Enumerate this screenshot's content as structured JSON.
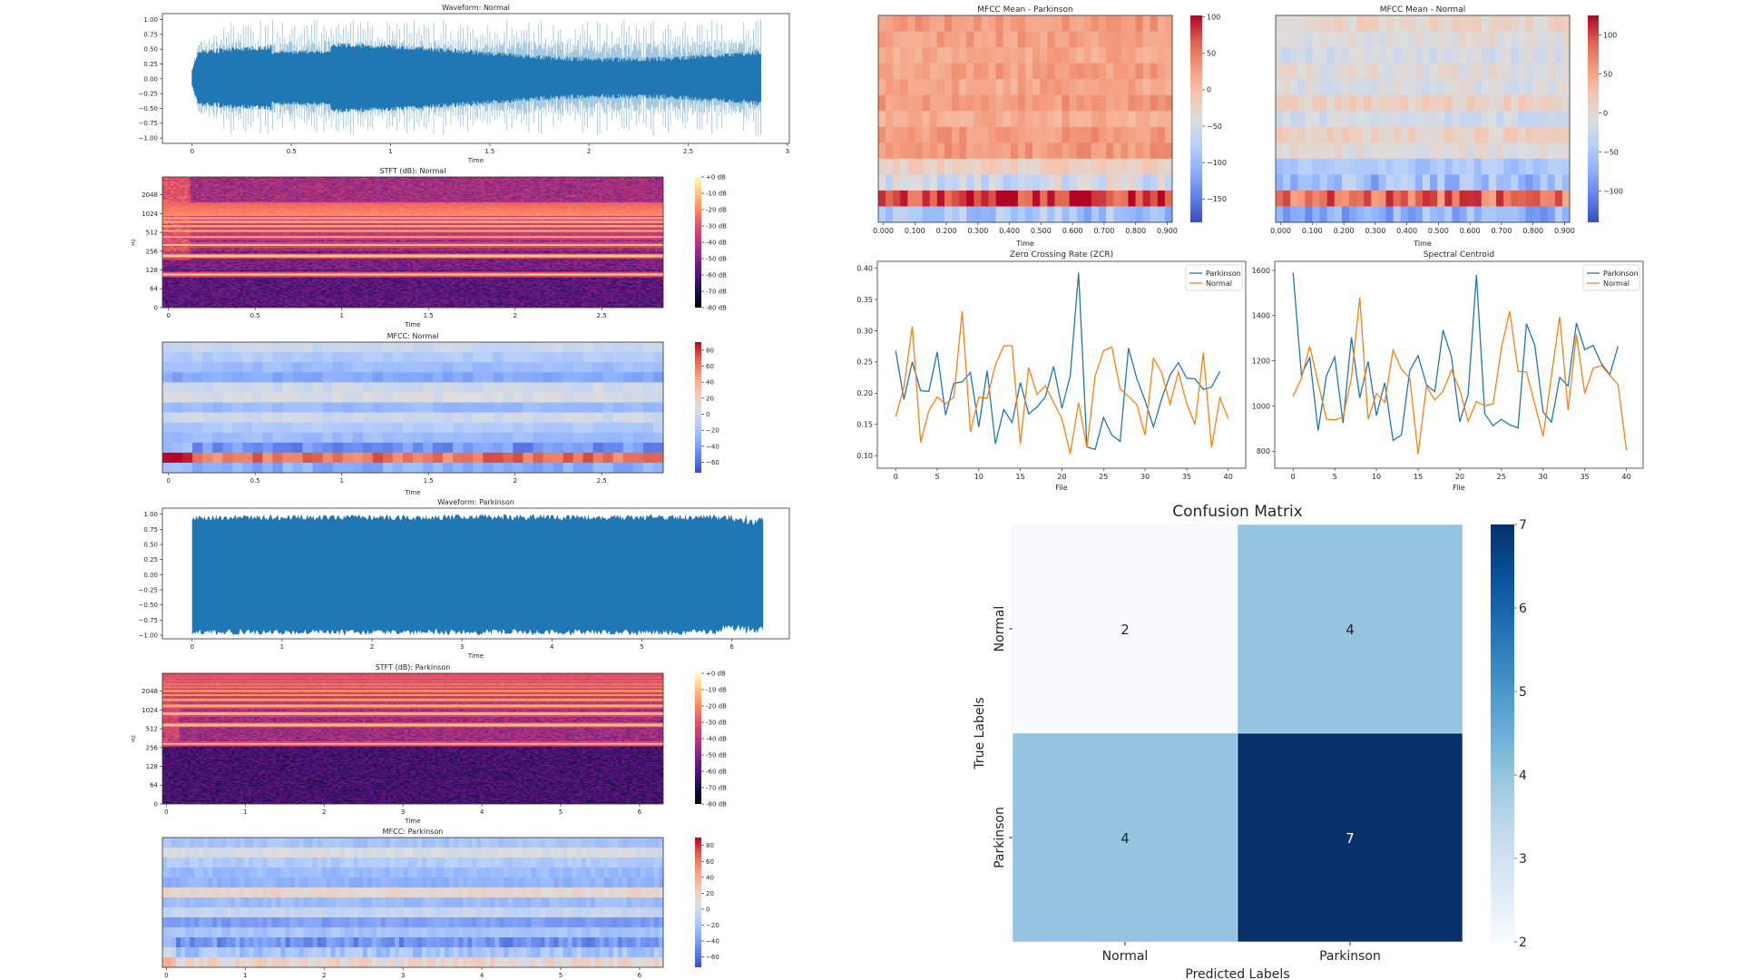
{
  "chart_data": [
    {
      "type": "line",
      "title": "Waveform: Normal",
      "xlabel": "Time",
      "x_ticks": [
        0,
        0.5,
        1,
        1.5,
        2,
        2.5,
        3
      ],
      "x_tick_labels": [
        "0",
        "0.5",
        "1",
        "1.5",
        "2",
        "2.5",
        "3"
      ],
      "y_ticks": [
        1,
        0.75,
        0.5,
        0.25,
        0,
        -0.25,
        -0.5,
        -0.75,
        -1
      ],
      "y_tick_labels": [
        "1.00",
        "0.75",
        "0.50",
        "0.25",
        "0.00",
        "−0.25",
        "−0.50",
        "−0.75",
        "−1.00"
      ],
      "xlim": [
        -0.15,
        3.01
      ],
      "ylim": [
        -1.09,
        1.1
      ],
      "duration_s": 2.87,
      "color": "#1f77b4"
    },
    {
      "type": "heatmap",
      "title": "STFT (dB): Normal",
      "xlabel": "Time",
      "ylabel": "Hz",
      "x_ticks": [
        0,
        0.5,
        1,
        1.5,
        2,
        2.5
      ],
      "x_tick_labels": [
        "0",
        "0.5",
        "1",
        "1.5",
        "2",
        "2.5"
      ],
      "y_ticks": [
        0,
        64,
        128,
        256,
        512,
        1024,
        2048
      ],
      "y_tick_labels": [
        "0",
        "64",
        "128",
        "256",
        "512",
        "1024",
        "2048"
      ],
      "xlim": [
        -0.035,
        2.855
      ],
      "fundamental_hz": 108,
      "colormap": "magma",
      "clim": [
        -80,
        0
      ],
      "colorbar_ticks": [
        0,
        -10,
        -20,
        -30,
        -40,
        -50,
        -60,
        -70,
        -80
      ],
      "colorbar_labels": [
        "+0 dB",
        "-10 dB",
        "-20 dB",
        "-30 dB",
        "-40 dB",
        "-50 dB",
        "-60 dB",
        "-70 dB",
        "-80 dB"
      ]
    },
    {
      "type": "heatmap",
      "title": "MFCC: Normal",
      "xlabel": "Time",
      "x_ticks": [
        0,
        0.5,
        1,
        1.5,
        2,
        2.5
      ],
      "x_tick_labels": [
        "0",
        "0.5",
        "1",
        "1.5",
        "2",
        "2.5"
      ],
      "xlim": [
        -0.035,
        2.855
      ],
      "colormap": "coolwarm",
      "clim": [
        -73,
        90
      ],
      "row_means": [
        -2,
        -15,
        -25,
        -35,
        0,
        5,
        -25,
        0,
        -15,
        -25,
        -45,
        62,
        -30
      ],
      "colorbar_ticks": [
        80,
        60,
        40,
        20,
        0,
        -20,
        -40,
        -60
      ],
      "colorbar_labels": [
        "80",
        "60",
        "40",
        "20",
        "0",
        "−20",
        "−40",
        "−60"
      ]
    },
    {
      "type": "line",
      "title": "Waveform: Parkinson",
      "xlabel": "Time",
      "x_ticks": [
        0,
        1,
        2,
        3,
        4,
        5,
        6
      ],
      "x_tick_labels": [
        "0",
        "1",
        "2",
        "3",
        "4",
        "5",
        "6"
      ],
      "y_ticks": [
        1,
        0.75,
        0.5,
        0.25,
        0,
        -0.25,
        -0.5,
        -0.75,
        -1
      ],
      "y_tick_labels": [
        "1.00",
        "0.75",
        "0.50",
        "0.25",
        "0.00",
        "−0.25",
        "−0.50",
        "−0.75",
        "−1.00"
      ],
      "xlim": [
        -0.33,
        6.64
      ],
      "ylim": [
        -1.06,
        1.1
      ],
      "duration_s": 6.35,
      "color": "#1f77b4"
    },
    {
      "type": "heatmap",
      "title": "STFT (dB): Parkinson",
      "xlabel": "Time",
      "ylabel": "Hz",
      "x_ticks": [
        0,
        1,
        2,
        3,
        4,
        5,
        6
      ],
      "x_tick_labels": [
        "0",
        "1",
        "2",
        "3",
        "4",
        "5",
        "6"
      ],
      "y_ticks": [
        0,
        64,
        128,
        256,
        512,
        1024,
        2048
      ],
      "y_tick_labels": [
        "0",
        "64",
        "128",
        "256",
        "512",
        "1024",
        "2048"
      ],
      "xlim": [
        -0.05,
        6.3
      ],
      "fundamental_hz": 295,
      "colormap": "magma",
      "clim": [
        -80,
        0
      ],
      "colorbar_ticks": [
        0,
        -10,
        -20,
        -30,
        -40,
        -50,
        -60,
        -70,
        -80
      ],
      "colorbar_labels": [
        "+0 dB",
        "-10 dB",
        "-20 dB",
        "-30 dB",
        "-40 dB",
        "-50 dB",
        "-60 dB",
        "-70 dB",
        "-80 dB"
      ]
    },
    {
      "type": "heatmap",
      "title": "MFCC: Parkinson",
      "xlabel": "Time",
      "x_ticks": [
        0,
        1,
        2,
        3,
        4,
        5,
        6
      ],
      "x_tick_labels": [
        "0",
        "1",
        "2",
        "3",
        "4",
        "5",
        "6"
      ],
      "xlim": [
        -0.05,
        6.3
      ],
      "colormap": "coolwarm",
      "clim": [
        -73,
        90
      ],
      "row_means": [
        -20,
        5,
        -15,
        -25,
        -30,
        15,
        -25,
        -5,
        -40,
        -20,
        -45,
        -20,
        15
      ],
      "colorbar_ticks": [
        80,
        60,
        40,
        20,
        0,
        -20,
        -40,
        -60
      ],
      "colorbar_labels": [
        "80",
        "60",
        "40",
        "20",
        "0",
        "−20",
        "−40",
        "−60"
      ]
    },
    {
      "type": "heatmap",
      "title": "MFCC Mean - Parkinson",
      "xlabel": "Time",
      "x_ticks": [
        0,
        0.1,
        0.2,
        0.3,
        0.4,
        0.5,
        0.6,
        0.7,
        0.8,
        0.9
      ],
      "x_tick_labels": [
        "0.000",
        "0.100",
        "0.200",
        "0.300",
        "0.400",
        "0.500",
        "0.600",
        "0.700",
        "0.800",
        "0.900"
      ],
      "xlim": [
        -0.016,
        0.916
      ],
      "colormap": "coolwarm",
      "clim": [
        -182,
        102
      ],
      "row_means": [
        30,
        25,
        20,
        25,
        20,
        30,
        15,
        30,
        30,
        -20,
        -50,
        80,
        -90
      ],
      "colorbar_ticks": [
        100,
        50,
        0,
        -50,
        -100,
        -150
      ],
      "colorbar_labels": [
        "100",
        "50",
        "0",
        "−50",
        "−100",
        "−150"
      ]
    },
    {
      "type": "heatmap",
      "title": "MFCC Mean - Normal",
      "xlabel": "Time",
      "x_ticks": [
        0,
        0.1,
        0.2,
        0.3,
        0.4,
        0.5,
        0.6,
        0.7,
        0.8,
        0.9
      ],
      "x_tick_labels": [
        "0.000",
        "0.100",
        "0.200",
        "0.300",
        "0.400",
        "0.500",
        "0.600",
        "0.700",
        "0.800",
        "0.900"
      ],
      "xlim": [
        -0.016,
        0.916
      ],
      "colormap": "coolwarm",
      "clim": [
        -140,
        125
      ],
      "row_means": [
        5,
        -5,
        -15,
        -5,
        -10,
        10,
        -20,
        10,
        -5,
        -50,
        -60,
        80,
        -70
      ],
      "colorbar_ticks": [
        100,
        50,
        0,
        -50,
        -100
      ],
      "colorbar_labels": [
        "100",
        "50",
        "0",
        "−50",
        "−100"
      ]
    },
    {
      "type": "line",
      "title": "Zero Crossing Rate (ZCR)",
      "xlabel": "File",
      "x_ticks": [
        0,
        5,
        10,
        15,
        20,
        25,
        30,
        35,
        40
      ],
      "x_tick_labels": [
        "0",
        "5",
        "10",
        "15",
        "20",
        "25",
        "30",
        "35",
        "40"
      ],
      "y_ticks": [
        0.4,
        0.35,
        0.3,
        0.25,
        0.2,
        0.15,
        0.1
      ],
      "y_tick_labels": [
        "0.40",
        "0.35",
        "0.30",
        "0.25",
        "0.20",
        "0.15",
        "0.10"
      ],
      "xlim": [
        -2.2,
        42.1
      ],
      "ylim": [
        0.08,
        0.411
      ],
      "legend": "top-right",
      "series": [
        {
          "name": "Parkinson",
          "color": "#1f77b4",
          "values": [
            0.268,
            0.19,
            0.25,
            0.204,
            0.203,
            0.266,
            0.165,
            0.216,
            0.218,
            0.233,
            0.146,
            0.236,
            0.119,
            0.174,
            0.153,
            0.217,
            0.167,
            0.178,
            0.194,
            0.243,
            0.176,
            0.228,
            0.393,
            0.114,
            0.11,
            0.161,
            0.133,
            0.123,
            0.272,
            0.224,
            0.188,
            0.146,
            0.191,
            0.229,
            0.249,
            0.224,
            0.223,
            0.206,
            0.21,
            0.235
          ]
        },
        {
          "name": "Normal",
          "color": "#ff7f0e",
          "values": [
            0.162,
            0.21,
            0.307,
            0.121,
            0.172,
            0.194,
            0.183,
            0.194,
            0.331,
            0.138,
            0.194,
            0.192,
            0.245,
            0.276,
            0.276,
            0.119,
            0.241,
            0.198,
            0.212,
            0.185,
            0.159,
            0.103,
            0.185,
            0.113,
            0.228,
            0.268,
            0.274,
            0.207,
            0.195,
            0.182,
            0.133,
            0.256,
            0.233,
            0.182,
            0.234,
            0.184,
            0.15,
            0.265,
            0.113,
            0.193,
            0.159
          ]
        }
      ]
    },
    {
      "type": "line",
      "title": "Spectral Centroid",
      "xlabel": "File",
      "x_ticks": [
        0,
        5,
        10,
        15,
        20,
        25,
        30,
        35,
        40
      ],
      "x_tick_labels": [
        "0",
        "5",
        "10",
        "15",
        "20",
        "25",
        "30",
        "35",
        "40"
      ],
      "y_ticks": [
        1600,
        1400,
        1200,
        1000,
        800
      ],
      "y_tick_labels": [
        "1600",
        "1400",
        "1200",
        "1000",
        "800"
      ],
      "xlim": [
        -2.2,
        42.0
      ],
      "ylim": [
        725,
        1640
      ],
      "legend": "top-right",
      "series": [
        {
          "name": "Parkinson",
          "color": "#1f77b4",
          "values": [
            1590,
            1139,
            1214,
            891,
            1134,
            1217,
            925,
            1304,
            1036,
            1197,
            958,
            1103,
            848,
            872,
            1156,
            1223,
            1093,
            1064,
            1335,
            1219,
            931,
            1049,
            1580,
            965,
            913,
            941,
            917,
            903,
            1364,
            1270,
            973,
            929,
            1127,
            1089,
            1367,
            1249,
            1268,
            1187,
            1139,
            1265
          ]
        },
        {
          "name": "Normal",
          "color": "#ff7f0e",
          "values": [
            1043,
            1123,
            1264,
            1103,
            942,
            938,
            951,
            1123,
            1480,
            942,
            1056,
            1016,
            1248,
            1163,
            1123,
            788,
            1087,
            1027,
            1065,
            1159,
            1072,
            933,
            1019,
            1002,
            1009,
            1257,
            1420,
            1154,
            1150,
            1009,
            866,
            1135,
            1395,
            982,
            1316,
            1056,
            1167,
            1179,
            1136,
            1096,
            804
          ]
        }
      ]
    },
    {
      "type": "heatmap",
      "title": "Confusion Matrix",
      "xlabel": "Predicted Labels",
      "ylabel": "True Labels",
      "x_tick_labels": [
        "Normal",
        "Parkinson"
      ],
      "y_tick_labels": [
        "Normal",
        "Parkinson"
      ],
      "matrix": [
        [
          2,
          4
        ],
        [
          4,
          7
        ]
      ],
      "colormap": "Blues",
      "clim": [
        2,
        7
      ],
      "colorbar_ticks": [
        7,
        6,
        5,
        4,
        3,
        2
      ],
      "colorbar_labels": [
        "7",
        "6",
        "5",
        "4",
        "3",
        "2"
      ]
    }
  ]
}
